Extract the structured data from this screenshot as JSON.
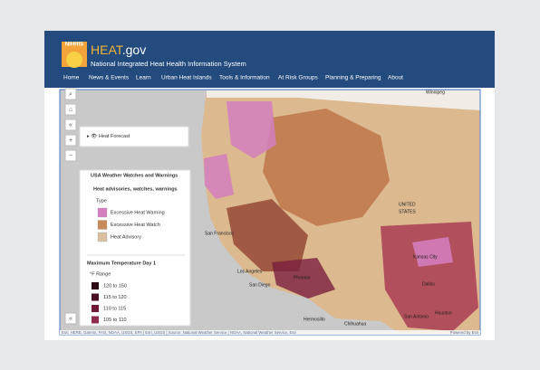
{
  "header": {
    "logo": "NIHHIS",
    "title": "HEAT",
    "title_suffix": ".gov",
    "subtitle": "National Integrated Heat Health Information System"
  },
  "nav": [
    "Home",
    "News & Events",
    "Learn",
    "Urban Heat Islands",
    "Tools & Information",
    "At Risk Groups",
    "Planning & Preparing",
    "About"
  ],
  "map": {
    "layer_panel": "Heat Forecast",
    "legend": {
      "title": "USA Weather Watches and Warnings",
      "group1": "Heat advisories, watches, warnings",
      "group1_field": "Type",
      "group1_items": [
        "Excessive Heat Warning",
        "Excessive Heat Watch",
        "Heat Advisory"
      ],
      "group2": "Maximum Temperature Day 1",
      "group2_field": "°F Range",
      "group2_items": [
        "120 to 150",
        "115 to 120",
        "110 to 115",
        "105 to 110"
      ]
    },
    "places": [
      "Winnipeg",
      "UNITED",
      "STATES",
      "Kansas City",
      "Dallas",
      "Houston",
      "San Antonio",
      "Los Angeles",
      "San Diego",
      "Phoenix",
      "Hermosillo",
      "Chihuahua",
      "San Francisco"
    ],
    "attribution": "Esri, HERE, Garmin, FAO, NOAA, USGS, EPA | Esri, USGS | Source: National Weather Service | NOAA, National Weather Service, Esri",
    "powered": "Powered by Esri"
  }
}
